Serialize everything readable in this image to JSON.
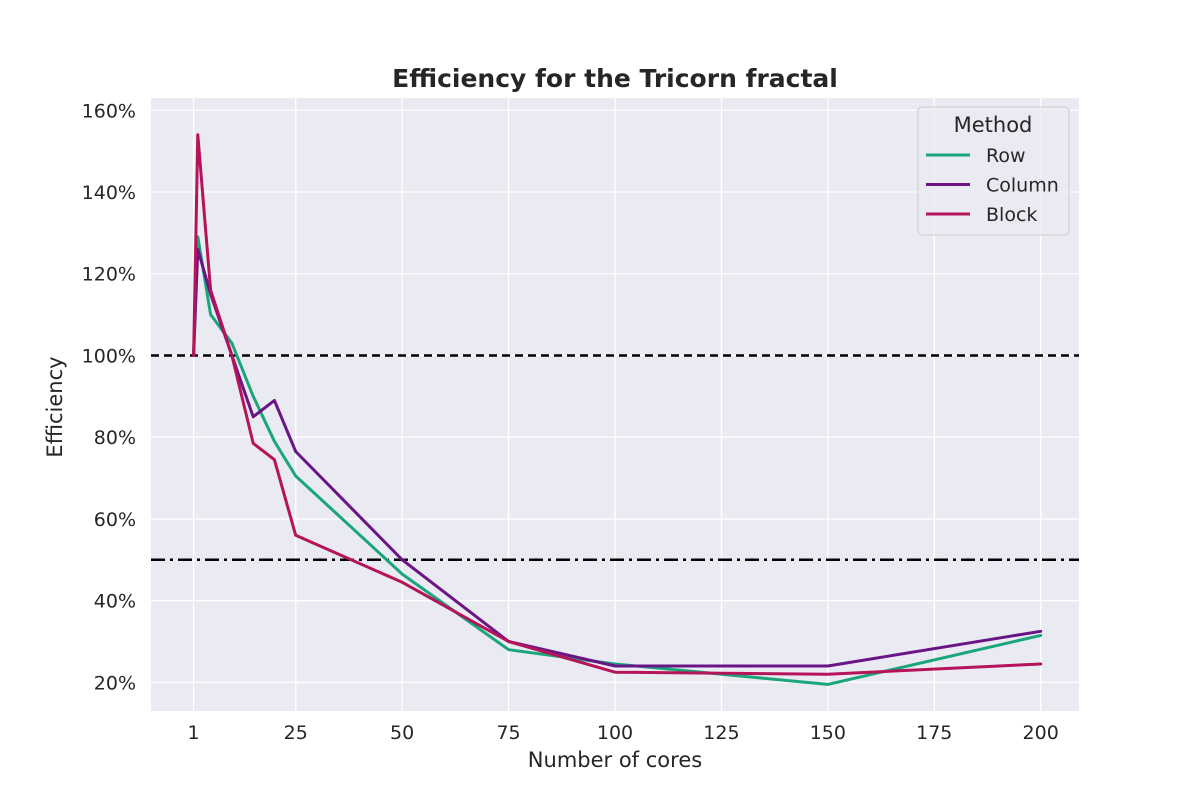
{
  "chart_data": {
    "type": "line",
    "title": "Efficiency for the Tricorn fractal",
    "xlabel": "Number of cores",
    "ylabel": "Efficiency",
    "xlim": [
      -9,
      209
    ],
    "ylim": [
      0.13,
      1.63
    ],
    "x_ticks": [
      1,
      25,
      50,
      75,
      100,
      125,
      150,
      175,
      200
    ],
    "y_ticks": [
      0.2,
      0.4,
      0.6,
      0.8,
      1.0,
      1.2,
      1.4,
      1.6
    ],
    "y_tick_format": "percent",
    "grid": true,
    "background": "#eaeaf2",
    "legend": {
      "title": "Method",
      "placement": "top-right"
    },
    "reference_lines": [
      {
        "y": 1.0,
        "style": "dashed",
        "color": "#000000"
      },
      {
        "y": 0.5,
        "style": "dashdot",
        "color": "#000000"
      }
    ],
    "x": [
      1,
      2,
      5,
      10,
      15,
      20,
      25,
      50,
      75,
      100,
      150,
      200
    ],
    "series": [
      {
        "name": "Row",
        "color": "#1aa67a",
        "values": [
          1.0,
          1.29,
          1.1,
          1.03,
          0.9,
          0.79,
          0.705,
          0.465,
          0.28,
          0.245,
          0.195,
          0.315
        ]
      },
      {
        "name": "Column",
        "color": "#6a1585",
        "values": [
          1.0,
          1.26,
          1.15,
          1.0,
          0.85,
          0.89,
          0.765,
          0.5,
          0.3,
          0.24,
          0.24,
          0.325
        ]
      },
      {
        "name": "Block",
        "color": "#b5135a",
        "values": [
          1.0,
          1.54,
          1.16,
          1.0,
          0.785,
          0.745,
          0.56,
          0.445,
          0.3,
          0.225,
          0.22,
          0.245
        ]
      }
    ]
  }
}
